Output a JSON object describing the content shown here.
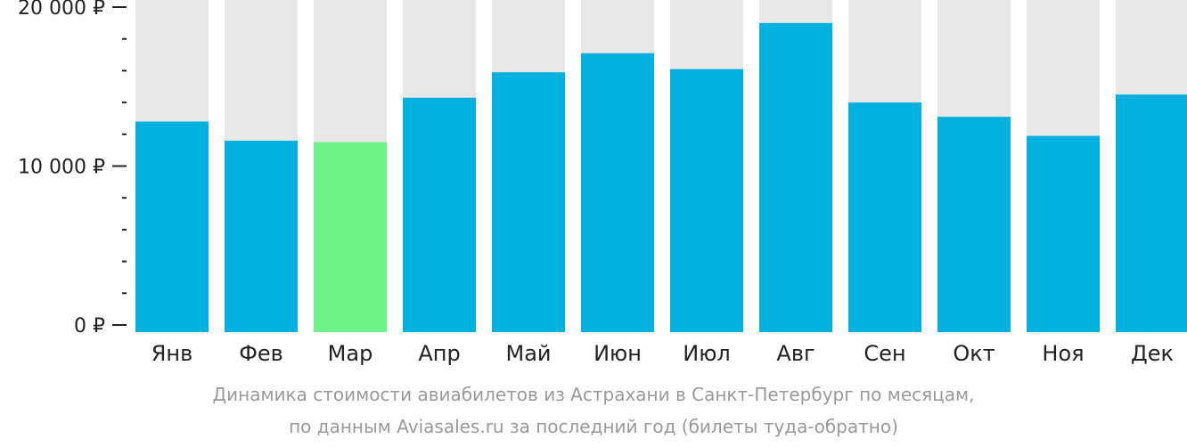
{
  "chart_data": {
    "type": "bar",
    "categories": [
      "Янв",
      "Фев",
      "Мар",
      "Апр",
      "Май",
      "Июн",
      "Июл",
      "Авг",
      "Сен",
      "Окт",
      "Ноя",
      "Дек"
    ],
    "values": [
      12800,
      11600,
      11500,
      14300,
      15900,
      17100,
      16100,
      19000,
      14000,
      13100,
      11900,
      14500
    ],
    "ylim": [
      0,
      20600
    ],
    "yticks": [
      {
        "value": 0,
        "label": "0 ₽"
      },
      {
        "value": 10000,
        "label": "10 000 ₽"
      },
      {
        "value": 20000,
        "label": "20 000 ₽"
      }
    ],
    "minor_tick_step": 2000,
    "highlight_index": 2,
    "colors": {
      "bar": "#00b0de",
      "highlight": "#6cf586",
      "background_bar": "#e8e8e8",
      "axis": "#222222"
    },
    "grid": false,
    "legend": "none"
  },
  "caption": {
    "line1": "Динамика стоимости авиабилетов из Астрахани в Санкт-Петербург по месяцам,",
    "line2": "по данным Aviasales.ru за последний год (билеты туда-обратно)"
  }
}
